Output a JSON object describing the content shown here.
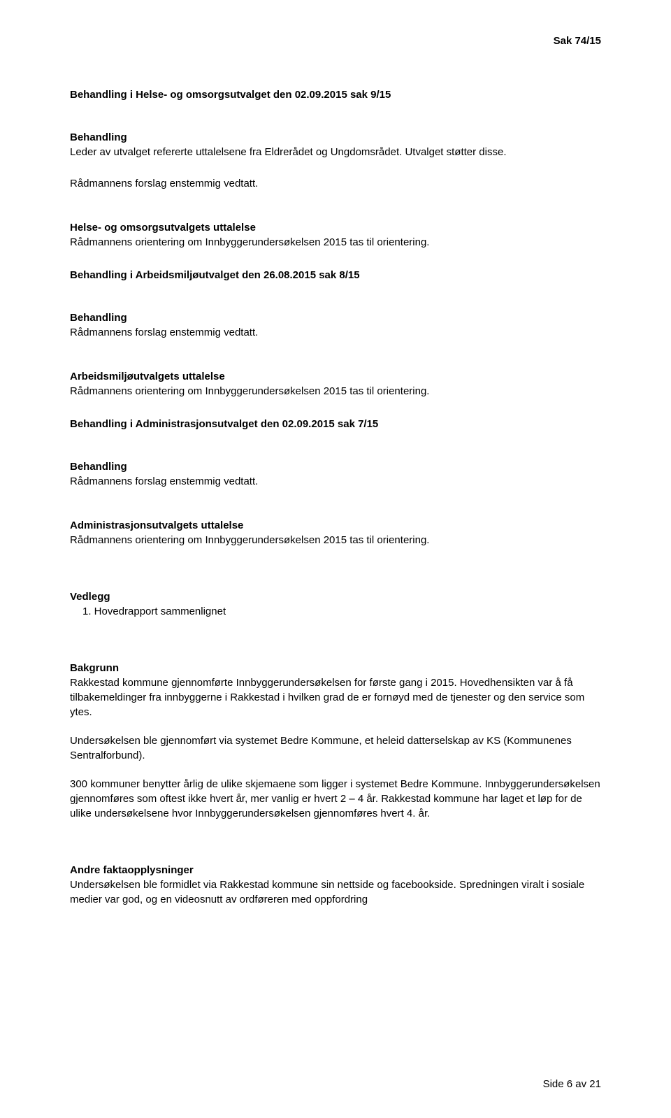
{
  "header": {
    "case_number": "Sak 74/15"
  },
  "sections": {
    "s1": {
      "title": "Behandling i Helse- og omsorgsutvalget den 02.09.2015 sak 9/15",
      "sub": "Behandling",
      "line1": "Leder av utvalget refererte uttalelsene fra Eldrerådet og Ungdomsrådet. Utvalget støtter disse.",
      "line2": "Rådmannens forslag enstemmig vedtatt.",
      "sub2": "Helse- og omsorgsutvalgets uttalelse",
      "line3": "Rådmannens orientering om Innbyggerundersøkelsen 2015 tas til orientering."
    },
    "s2": {
      "title": "Behandling i Arbeidsmiljøutvalget den 26.08.2015 sak 8/15",
      "sub": "Behandling",
      "line1": "Rådmannens forslag enstemmig vedtatt.",
      "sub2": "Arbeidsmiljøutvalgets uttalelse",
      "line2": "Rådmannens orientering om Innbyggerundersøkelsen 2015 tas til orientering."
    },
    "s3": {
      "title": "Behandling i Administrasjonsutvalget den 02.09.2015 sak 7/15",
      "sub": "Behandling",
      "line1": "Rådmannens forslag enstemmig vedtatt.",
      "sub2": "Administrasjonsutvalgets uttalelse",
      "line2": "Rådmannens orientering om Innbyggerundersøkelsen 2015 tas til orientering."
    },
    "vedlegg": {
      "title": "Vedlegg",
      "item1": "1.  Hovedrapport sammenlignet"
    },
    "bakgrunn": {
      "title": "Bakgrunn",
      "p1": "Rakkestad kommune gjennomførte Innbyggerundersøkelsen for første gang i 2015. Hovedhensikten var å få tilbakemeldinger fra innbyggerne i Rakkestad i hvilken grad de er fornøyd med de tjenester og den service som ytes.",
      "p2": "Undersøkelsen ble gjennomført via systemet Bedre Kommune, et heleid datterselskap av KS (Kommunenes Sentralforbund).",
      "p3": "300 kommuner benytter årlig de ulike skjemaene som ligger i systemet Bedre Kommune. Innbyggerundersøkelsen gjennomføres som oftest ikke hvert år, mer vanlig er hvert 2 – 4 år. Rakkestad kommune har laget et løp for de ulike undersøkelsene hvor Innbyggerundersøkelsen gjennomføres hvert 4. år."
    },
    "andre": {
      "title": "Andre faktaopplysninger",
      "p1": "Undersøkelsen ble formidlet via Rakkestad kommune sin nettside og facebookside. Spredningen viralt i sosiale medier var god, og en videosnutt av ordføreren med oppfordring"
    }
  },
  "footer": {
    "page_info": "Side 6 av 21"
  }
}
